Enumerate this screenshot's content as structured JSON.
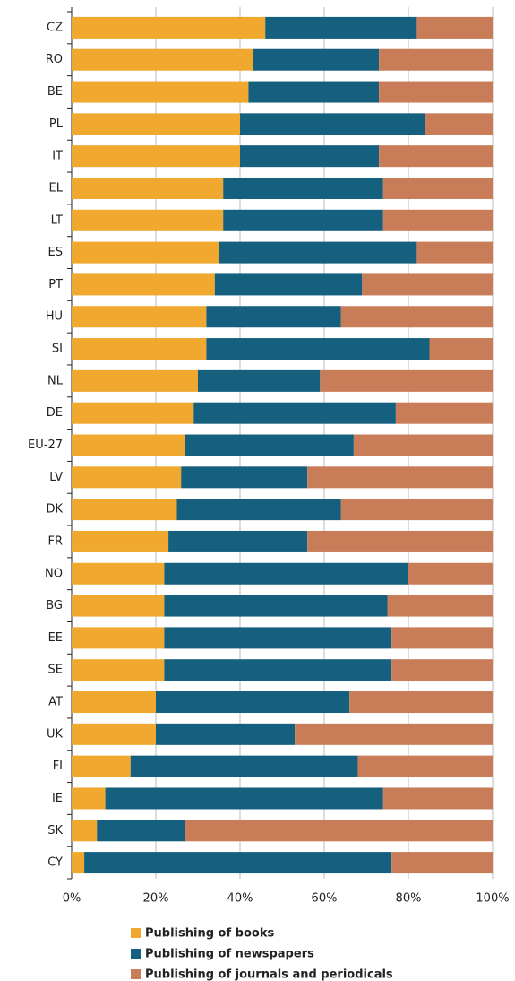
{
  "chart_data": {
    "type": "stacked-bar-horizontal",
    "categories": [
      "CZ",
      "RO",
      "BE",
      "PL",
      "IT",
      "EL",
      "LT",
      "ES",
      "PT",
      "HU",
      "SI",
      "NL",
      "DE",
      "EU-27",
      "LV",
      "DK",
      "FR",
      "NO",
      "BG",
      "EE",
      "SE",
      "AT",
      "UK",
      "FI",
      "IE",
      "SK",
      "CY"
    ],
    "series": [
      {
        "name": "Publishing of books",
        "color": "#f0a82e",
        "values": [
          46,
          43,
          42,
          40,
          40,
          36,
          36,
          35,
          34,
          32,
          32,
          30,
          29,
          27,
          26,
          25,
          23,
          22,
          22,
          22,
          22,
          20,
          20,
          14,
          8,
          6,
          3
        ]
      },
      {
        "name": "Publishing of newspapers",
        "color": "#155f7f",
        "values": [
          36,
          30,
          31,
          44,
          33,
          38,
          38,
          47,
          35,
          32,
          53,
          29,
          48,
          40,
          30,
          39,
          33,
          58,
          53,
          54,
          54,
          46,
          33,
          54,
          66,
          21,
          73
        ]
      },
      {
        "name": "Publishing of journals and periodicals",
        "color": "#c97c58",
        "values": [
          18,
          27,
          27,
          16,
          27,
          26,
          26,
          18,
          31,
          36,
          15,
          41,
          23,
          33,
          44,
          36,
          44,
          20,
          25,
          24,
          24,
          34,
          47,
          32,
          26,
          73,
          24
        ]
      }
    ],
    "xlim": [
      0,
      100
    ],
    "xticks": [
      {
        "value": 0,
        "label": "0%"
      },
      {
        "value": 20,
        "label": "20%"
      },
      {
        "value": 40,
        "label": "40%"
      },
      {
        "value": 60,
        "label": "60%"
      },
      {
        "value": 80,
        "label": "80%"
      },
      {
        "value": 100,
        "label": "100%"
      }
    ],
    "grid": true,
    "legend": "bottom"
  }
}
